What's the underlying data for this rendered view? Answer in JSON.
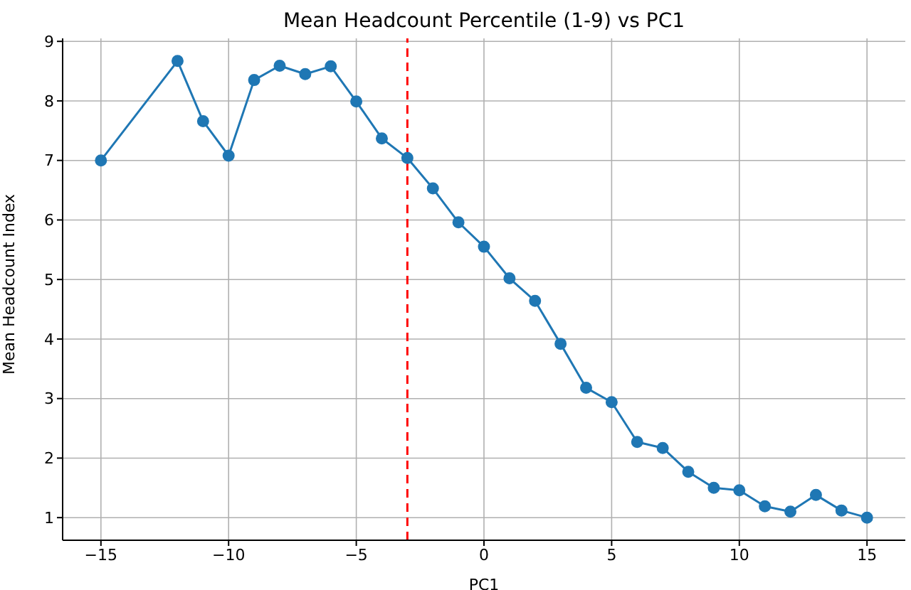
{
  "chart_data": {
    "type": "line",
    "title": "Mean Headcount Percentile (1-9) vs PC1",
    "xlabel": "PC1",
    "ylabel": "Mean Headcount Index",
    "x": [
      -15,
      -12,
      -11,
      -10,
      -9,
      -8,
      -7,
      -6,
      -5,
      -4,
      -3,
      -2,
      -1,
      0,
      1,
      2,
      3,
      4,
      5,
      6,
      7,
      8,
      9,
      10,
      11,
      12,
      13,
      14,
      15
    ],
    "series": [
      {
        "color": "#1f77b4",
        "values": [
          7.0,
          8.67,
          7.66,
          7.08,
          8.35,
          8.59,
          8.45,
          8.58,
          7.99,
          7.37,
          7.04,
          6.53,
          5.96,
          5.55,
          5.02,
          4.64,
          3.92,
          3.18,
          2.94,
          2.27,
          2.17,
          1.77,
          1.5,
          1.46,
          1.19,
          1.1,
          1.38,
          1.12,
          1.0
        ]
      }
    ],
    "xlim": [
      -16.5,
      16.5
    ],
    "xticks": [
      {
        "value": -15,
        "label": "−15"
      },
      {
        "value": -10,
        "label": "−10"
      },
      {
        "value": -5,
        "label": "−5"
      },
      0,
      5,
      10,
      15
    ],
    "ylim": [
      0.62,
      9.05
    ],
    "yticks": [
      1,
      2,
      3,
      4,
      5,
      6,
      7,
      8,
      9
    ],
    "ref_lines": [
      {
        "axis": "x",
        "value": -3,
        "color": "#ff0000",
        "line_style": "dashed"
      }
    ],
    "grid": true,
    "marker": "circle",
    "line_style": "solid"
  }
}
